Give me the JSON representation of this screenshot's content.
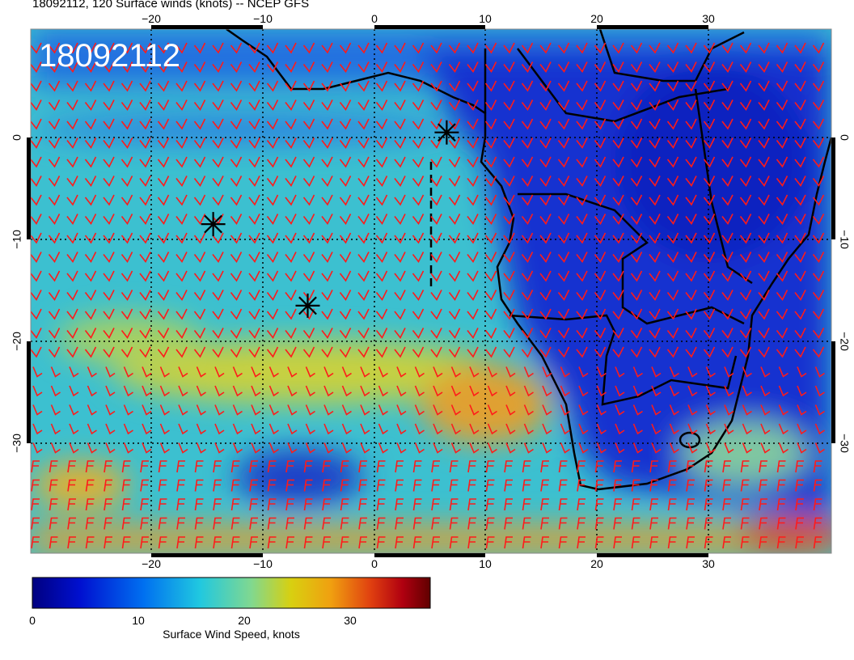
{
  "title": "18092112, 120 Surface winds (knots) -- NCEP GFS",
  "stamp": "18092112",
  "axes": {
    "lon_ticks": [
      "−20",
      "−10",
      "0",
      "10",
      "20",
      "30"
    ],
    "lat_ticks": [
      "0",
      "−10",
      "−20",
      "−30"
    ]
  },
  "colorbar": {
    "label": "Surface Wind Speed, knots",
    "ticks": [
      "0",
      "10",
      "20",
      "30"
    ],
    "range": [
      0,
      36
    ]
  },
  "markers": [
    {
      "name": "storm-marker-1",
      "lon": 6.5,
      "lat": 0.5
    },
    {
      "name": "storm-marker-2",
      "lon": -14.5,
      "lat": -8.5
    },
    {
      "name": "storm-marker-3",
      "lon": -6,
      "lat": -16.5
    }
  ],
  "colors": {
    "barb": "#ff1a1a",
    "land_low": "#1a3fd0",
    "ocean": "#3cc7d0",
    "high_wind": "#e8a020"
  }
}
